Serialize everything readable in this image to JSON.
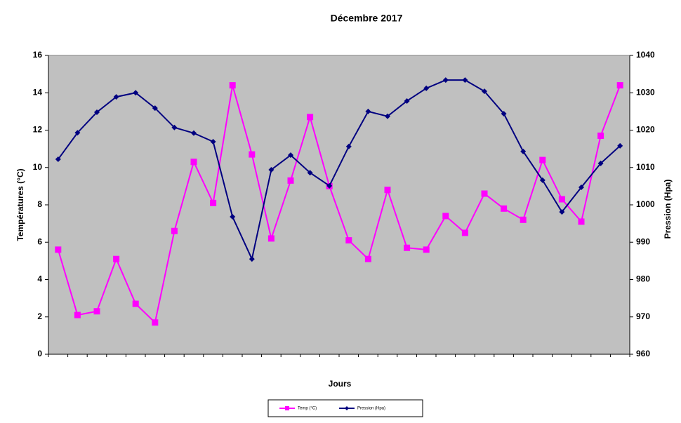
{
  "chart_data": {
    "type": "line",
    "title": "Décembre 2017",
    "x_label": "Jours",
    "y_label": "Températures (°C)",
    "y2_label": "Pression (Hpa)",
    "categories": [
      null,
      null,
      null,
      null,
      null,
      null,
      null,
      null,
      null,
      null,
      null,
      null,
      null,
      null,
      null,
      null,
      null,
      null,
      null,
      null,
      null,
      null,
      null,
      null,
      null,
      null,
      null,
      null,
      null,
      null
    ],
    "ylim": [
      0,
      16
    ],
    "yticks": [
      0,
      2,
      4,
      6,
      8,
      10,
      12,
      14,
      16
    ],
    "y2lim": [
      960,
      1040
    ],
    "y2ticks": [
      960,
      970,
      980,
      990,
      1000,
      1010,
      1020,
      1030,
      1040
    ],
    "grid": false,
    "legend": "bottom",
    "background": "#c0c0c0",
    "series": [
      {
        "name": "Temp (°C)",
        "color": "#ff00ff",
        "marker": "square",
        "values": [
          5.6,
          2.1,
          2.3,
          5.1,
          2.7,
          1.7,
          6.6,
          10.3,
          8.1,
          14.4,
          10.7,
          6.2,
          9.3,
          12.7,
          9.0,
          6.1,
          5.1,
          8.8,
          5.7,
          5.6,
          7.4,
          6.5,
          8.6,
          7.8,
          7.2,
          10.4,
          8.3,
          7.1,
          11.7,
          14.4
        ]
      },
      {
        "name": "Pression (Hpa)",
        "color": "#000080",
        "marker": "diamond",
        "axis": "y2",
        "values": [
          1012.2,
          1019.3,
          1024.8,
          1028.9,
          1030,
          1025.9,
          1020.7,
          1019.2,
          1016.9,
          996.8,
          985.5,
          1009.4,
          1013.3,
          1008.6,
          1005.1,
          1015.6,
          1025,
          1023.7,
          1027.8,
          1031.2,
          1033.4,
          1033.4,
          1030.4,
          1024.4,
          1014.3,
          1006.6,
          998.1,
          1004.7,
          1011.1,
          1015.8
        ]
      }
    ]
  }
}
